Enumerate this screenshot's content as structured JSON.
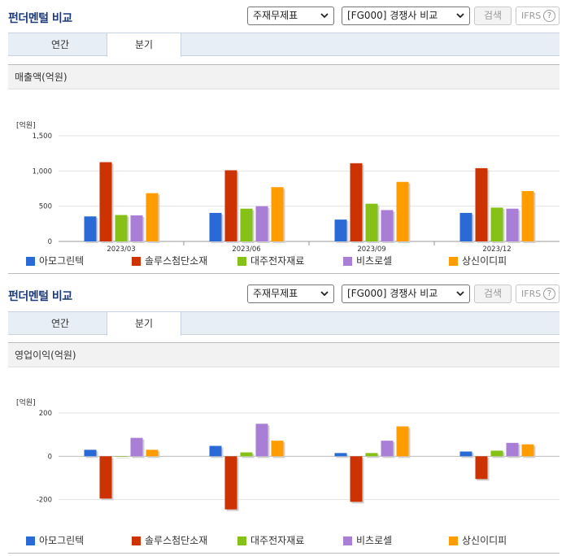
{
  "sections": [
    {
      "title": "펀더멘털 비교",
      "select1": "주재무제표",
      "select2": "[FG000] 경쟁사 비교",
      "search_label": "검색",
      "ifrs_label": "IFRS",
      "help_label": "?",
      "tabs": [
        {
          "label": "연간",
          "active": false
        },
        {
          "label": "분기",
          "active": true
        }
      ],
      "chart_title": "매출액(억원)"
    },
    {
      "title": "펀더멘털 비교",
      "select1": "주재무제표",
      "select2": "[FG000] 경쟁사 비교",
      "search_label": "검색",
      "ifrs_label": "IFRS",
      "help_label": "?",
      "tabs": [
        {
          "label": "연간",
          "active": false
        },
        {
          "label": "분기",
          "active": true
        }
      ],
      "chart_title": "영업이익(억원)"
    }
  ],
  "colors": {
    "아모그린텍": "#2a6ad6",
    "솔루스첨단소재": "#cc3300",
    "대주전자재료": "#86c117",
    "비츠로셀": "#a97ed6",
    "상신이디피": "#ff9c00"
  },
  "chart_data": [
    {
      "type": "bar",
      "title": "매출액(억원)",
      "unit_label": "[억원]",
      "categories": [
        "2023/03",
        "2023/06",
        "2023/09",
        "2023/12"
      ],
      "ylim": [
        0,
        1500
      ],
      "yticks": [
        0,
        500,
        1000,
        1500
      ],
      "ytick_labels": [
        "0",
        "500",
        "1,000",
        "1,500"
      ],
      "grid": true,
      "legend": "bottom",
      "series": [
        {
          "name": "아모그린텍",
          "values": [
            355,
            405,
            310,
            405
          ]
        },
        {
          "name": "솔루스첨단소재",
          "values": [
            1125,
            1010,
            1110,
            1040
          ]
        },
        {
          "name": "대주전자재료",
          "values": [
            375,
            465,
            535,
            480
          ]
        },
        {
          "name": "비츠로셀",
          "values": [
            370,
            500,
            445,
            465
          ]
        },
        {
          "name": "상신이디피",
          "values": [
            685,
            770,
            845,
            715
          ]
        }
      ]
    },
    {
      "type": "bar",
      "title": "영업이익(억원)",
      "unit_label": "[억원]",
      "categories": [
        "2023/03",
        "2023/06",
        "2023/09",
        "2023/12"
      ],
      "ylim": [
        -400,
        200
      ],
      "yticks": [
        -400,
        -200,
        0,
        200
      ],
      "ytick_labels": [
        "-400",
        "-200",
        "0",
        "200"
      ],
      "grid": true,
      "legend": "bottom",
      "series": [
        {
          "name": "아모그린텍",
          "values": [
            30,
            48,
            15,
            22
          ]
        },
        {
          "name": "솔루스첨단소재",
          "values": [
            -195,
            -245,
            -210,
            -105
          ]
        },
        {
          "name": "대주전자재료",
          "values": [
            0,
            18,
            15,
            26
          ]
        },
        {
          "name": "비츠로셀",
          "values": [
            85,
            150,
            72,
            62
          ]
        },
        {
          "name": "상신이디피",
          "values": [
            30,
            72,
            138,
            55
          ]
        }
      ]
    }
  ]
}
